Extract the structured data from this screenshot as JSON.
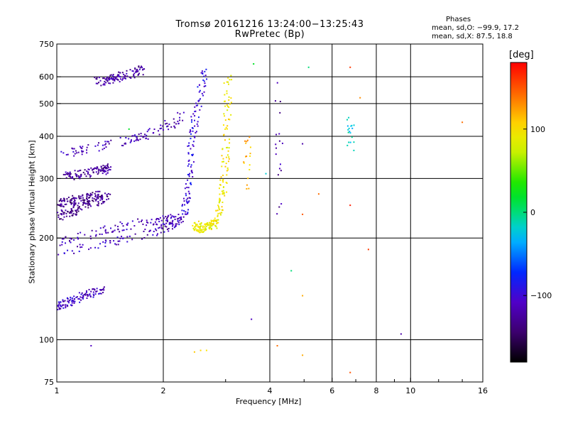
{
  "header": {
    "title_line1": "Tromsø 20161216 13:24:00−13:25:43",
    "title_line2": "RwPretec (Bp)"
  },
  "stats": {
    "label": "Phases",
    "line_o": "mean, sd,O: −99.9, 17.2",
    "line_x": "mean, sd,X:  87.5, 18.8"
  },
  "colorbar": {
    "unit_label": "[deg]",
    "ticks": [
      "100",
      "0",
      "−100"
    ],
    "tick_values": [
      100,
      0,
      -100
    ],
    "range": [
      -180,
      180
    ]
  },
  "chart_data": {
    "type": "scatter",
    "title": "Tromsø 20161216 13:24:00−13:25:43",
    "subtitle": "RwPretec (Bp)",
    "xlabel": "Frequency [MHz]",
    "ylabel": "Stationary phase Virtual Height [km]",
    "x_scale": "log",
    "y_scale": "log",
    "xlim": [
      1,
      16
    ],
    "ylim": [
      75,
      750
    ],
    "x_ticks": [
      1,
      2,
      4,
      6,
      8,
      10,
      16
    ],
    "x_tick_labels": [
      "1",
      "2",
      "4",
      "6",
      "8",
      "10",
      "16"
    ],
    "y_ticks": [
      75,
      100,
      200,
      300,
      400,
      500,
      600,
      750
    ],
    "y_tick_labels": [
      "75",
      "100",
      "200",
      "300",
      "400",
      "500",
      "600",
      "750"
    ],
    "grid_x": [
      2,
      4,
      6,
      8,
      10
    ],
    "grid_y": [
      100,
      200,
      300,
      400,
      500,
      600
    ],
    "color_by": "phase [deg]",
    "traces": [
      {
        "x": [
          1.0,
          1.1,
          1.25,
          1.4,
          1.55,
          1.7,
          1.85,
          1.95,
          2.05,
          2.15,
          2.22,
          2.28,
          2.32,
          2.36
        ],
        "y": [
          180,
          183,
          188,
          193,
          198,
          203,
          208,
          212,
          216,
          220,
          225,
          232,
          245,
          265
        ],
        "phase": -110
      },
      {
        "x": [
          1.0,
          1.1,
          1.25,
          1.4,
          1.55,
          1.7,
          1.85,
          2.0,
          2.12,
          2.22
        ],
        "y": [
          195,
          200,
          206,
          212,
          217,
          221,
          224,
          226,
          228,
          230
        ],
        "phase": -115
      },
      {
        "x": [
          1.0,
          1.06,
          1.12,
          1.2,
          1.3,
          1.4
        ],
        "y": [
          232,
          236,
          241,
          249,
          257,
          264
        ],
        "phase": -130
      },
      {
        "x": [
          1.0,
          1.06,
          1.15,
          1.25,
          1.35
        ],
        "y": [
          252,
          256,
          260,
          264,
          268
        ],
        "phase": -130
      },
      {
        "x": [
          1.05,
          1.15,
          1.3,
          1.45,
          1.6,
          1.75,
          1.9,
          2.05,
          2.18,
          2.28
        ],
        "y": [
          355,
          363,
          372,
          382,
          392,
          402,
          415,
          430,
          445,
          468
        ],
        "phase": -115
      },
      {
        "x": [
          1.05,
          1.12,
          1.2,
          1.28,
          1.35,
          1.4
        ],
        "y": [
          303,
          307,
          310,
          314,
          318,
          322
        ],
        "phase": -125
      },
      {
        "x": [
          1.3,
          1.38,
          1.45,
          1.55,
          1.65,
          1.75
        ],
        "y": [
          580,
          588,
          596,
          605,
          615,
          630
        ],
        "phase": -120
      },
      {
        "x": [
          1.0,
          1.06,
          1.12,
          1.2,
          1.28,
          1.35
        ],
        "y": [
          125,
          128,
          132,
          136,
          138,
          141
        ],
        "phase": -110
      },
      {
        "x": [
          2.3,
          2.32,
          2.35,
          2.38,
          2.4,
          2.44,
          2.48,
          2.52,
          2.58,
          2.62
        ],
        "y": [
          240,
          270,
          300,
          330,
          370,
          420,
          470,
          520,
          570,
          620
        ],
        "phase": -95
      },
      {
        "x": [
          2.45,
          2.5,
          2.55,
          2.6,
          2.65,
          2.7,
          2.75,
          2.8,
          2.85
        ],
        "y": [
          220,
          215,
          214,
          215,
          216,
          217,
          219,
          220,
          222
        ],
        "phase": 90
      },
      {
        "x": [
          2.85,
          2.9,
          2.95,
          2.98,
          3.0,
          3.02,
          3.04,
          3.05
        ],
        "y": [
          230,
          250,
          275,
          310,
          360,
          420,
          500,
          600
        ],
        "phase": 95
      },
      {
        "x": [
          3.4,
          3.43,
          3.45,
          3.46
        ],
        "y": [
          280,
          320,
          360,
          400
        ],
        "phase": 115
      },
      {
        "x": [
          4.25,
          4.25,
          4.25,
          4.25
        ],
        "y": [
          230,
          330,
          400,
          600
        ],
        "phase": -120
      },
      {
        "x": [
          6.75,
          6.75,
          6.75
        ],
        "y": [
          370,
          420,
          450
        ],
        "phase": -20
      }
    ],
    "isolated_points": [
      {
        "x": 1.25,
        "y": 96,
        "phase": -110
      },
      {
        "x": 2.45,
        "y": 92,
        "phase": 110
      },
      {
        "x": 2.55,
        "y": 93,
        "phase": 105
      },
      {
        "x": 2.65,
        "y": 93,
        "phase": 100
      },
      {
        "x": 3.55,
        "y": 115,
        "phase": -110
      },
      {
        "x": 4.2,
        "y": 96,
        "phase": 140
      },
      {
        "x": 4.6,
        "y": 160,
        "phase": 0
      },
      {
        "x": 4.95,
        "y": 135,
        "phase": 120
      },
      {
        "x": 4.95,
        "y": 90,
        "phase": 120
      },
      {
        "x": 4.95,
        "y": 235,
        "phase": 150
      },
      {
        "x": 5.5,
        "y": 270,
        "phase": 140
      },
      {
        "x": 4.95,
        "y": 380,
        "phase": -120
      },
      {
        "x": 5.15,
        "y": 640,
        "phase": 0
      },
      {
        "x": 6.75,
        "y": 640,
        "phase": 160
      },
      {
        "x": 6.75,
        "y": 250,
        "phase": 170
      },
      {
        "x": 6.75,
        "y": 80,
        "phase": 150
      },
      {
        "x": 7.6,
        "y": 185,
        "phase": 160
      },
      {
        "x": 7.2,
        "y": 520,
        "phase": 130
      },
      {
        "x": 9.4,
        "y": 104,
        "phase": -120
      },
      {
        "x": 14.0,
        "y": 440,
        "phase": 140
      },
      {
        "x": 3.6,
        "y": 655,
        "phase": 20
      },
      {
        "x": 1.6,
        "y": 420,
        "phase": 20
      },
      {
        "x": 3.9,
        "y": 310,
        "phase": -20
      }
    ]
  }
}
